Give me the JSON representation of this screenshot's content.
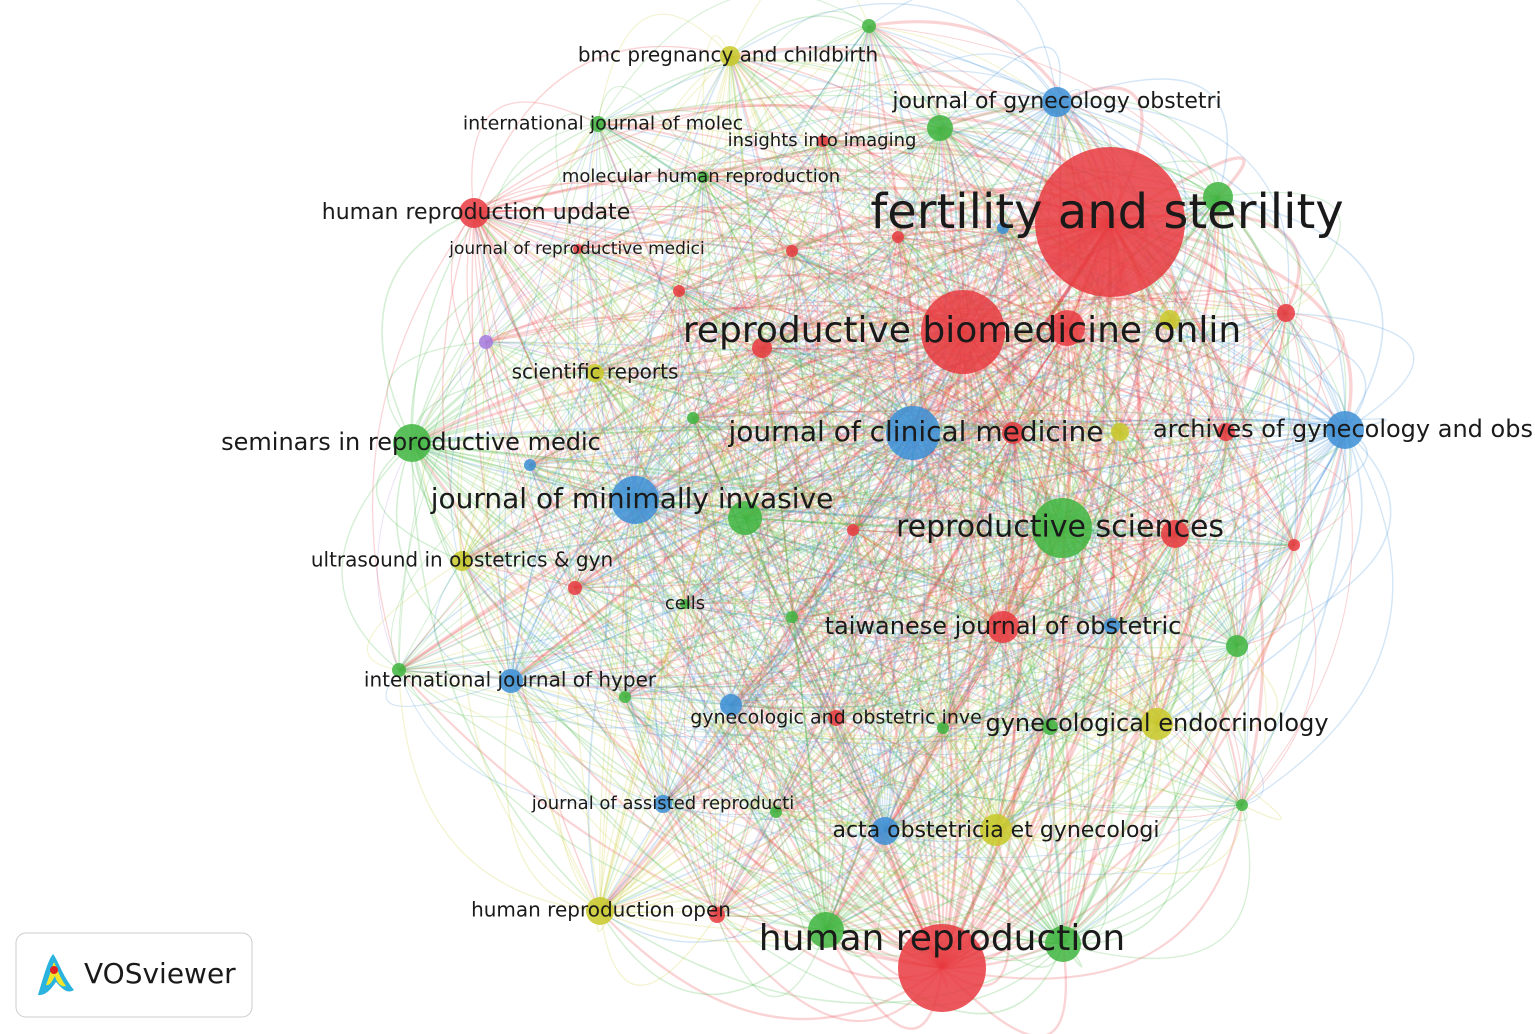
{
  "nodes": [
    {
      "label": "fertility and sterility",
      "color": "#e8393f"
    },
    {
      "label": "reproductive biomedicine onlin",
      "color": "#e8393f"
    },
    {
      "label": "human reproduction",
      "color": "#e8393f"
    },
    {
      "label": "journal of clinical medicine",
      "color": "#3c8fd6"
    },
    {
      "label": "reproductive sciences",
      "color": "#3fb53f"
    },
    {
      "label": "journal of minimally invasive",
      "color": "#3c8fd6"
    },
    {
      "label": "seminars in reproductive medic",
      "color": "#3fb53f"
    },
    {
      "label": "archives of gynecology and obs",
      "color": "#3c8fd6"
    },
    {
      "label": "human reproduction update",
      "color": "#e8393f"
    },
    {
      "label": "journal of gynecology obstetri",
      "color": "#3c8fd6"
    },
    {
      "label": "bmc pregnancy and childbirth",
      "color": "#c9c92a"
    },
    {
      "label": "international journal of molec",
      "color": "#3fb53f"
    },
    {
      "label": "insights into imaging",
      "color": "#e8393f"
    },
    {
      "label": "molecular human reproduction",
      "color": "#3fb53f"
    },
    {
      "label": "journal of reproductive medici",
      "color": "#e8393f"
    },
    {
      "label": "scientific reports",
      "color": "#c9c92a"
    },
    {
      "label": "ultrasound in obstetrics & gyn",
      "color": "#c9c92a"
    },
    {
      "label": "cells",
      "color": "#3fb53f"
    },
    {
      "label": "taiwanese journal of obstetric",
      "color": "#e8393f"
    },
    {
      "label": "international journal of hyper",
      "color": "#3c8fd6"
    },
    {
      "label": "gynecologic and obstetric inve",
      "color": "#e8393f"
    },
    {
      "label": "gynecological endocrinology",
      "color": "#c9c92a"
    },
    {
      "label": "journal of assisted reproducti",
      "color": "#3c8fd6"
    },
    {
      "label": "acta obstetricia et gynecologi",
      "color": "#3c8fd6"
    },
    {
      "label": "human reproduction open",
      "color": "#c9c92a"
    }
  ],
  "logo": {
    "text": "VOSviewer"
  }
}
